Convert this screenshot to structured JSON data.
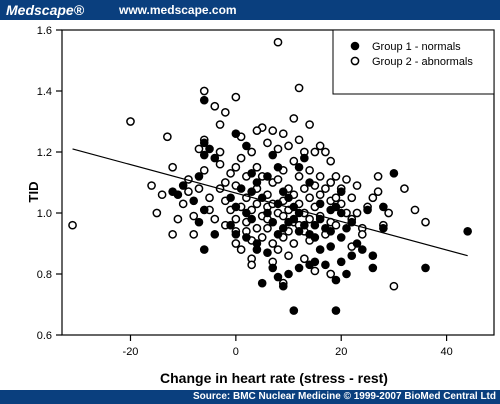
{
  "header": {
    "brand": "Medscape®",
    "site": "www.medscape.com"
  },
  "footer": {
    "source": "Source: BMC Nuclear Medicine © 1999-2007 BioMed Central Ltd"
  },
  "colors": {
    "bar": "#0a3f7e",
    "text": "#ffffff",
    "ink": "#000000"
  },
  "chart_data": {
    "type": "scatter",
    "xlabel": "Change in heart rate (stress - rest)",
    "ylabel": "TID",
    "xlim": [
      -33,
      49
    ],
    "ylim": [
      0.6,
      1.6
    ],
    "xticks": [
      -20,
      0,
      20,
      40
    ],
    "yticks": [
      0.6,
      0.8,
      1.0,
      1.2,
      1.4,
      1.6
    ],
    "grid": false,
    "legend_position": "top-right",
    "trendline": {
      "x": [
        -31,
        44
      ],
      "y": [
        1.21,
        0.86
      ]
    },
    "series": [
      {
        "name": "Group 1 - normals",
        "marker": "filled",
        "points": [
          [
            -6,
            1.37
          ],
          [
            -6,
            1.23
          ],
          [
            -5,
            1.21
          ],
          [
            -6,
            1.19
          ],
          [
            -4,
            1.18
          ],
          [
            -7,
            1.12
          ],
          [
            -11,
            1.06
          ],
          [
            -12,
            1.07
          ],
          [
            -10,
            1.09
          ],
          [
            -8,
            1.04
          ],
          [
            -6,
            1.01
          ],
          [
            -7,
            0.97
          ],
          [
            -4,
            0.93
          ],
          [
            -6,
            0.88
          ],
          [
            0,
            1.26
          ],
          [
            2,
            1.22
          ],
          [
            3,
            1.13
          ],
          [
            4,
            1.1
          ],
          [
            1,
            1.08
          ],
          [
            -1,
            1.05
          ],
          [
            0,
            1.02
          ],
          [
            2,
            1.0
          ],
          [
            3,
            0.98
          ],
          [
            -1,
            0.96
          ],
          [
            0,
            0.93
          ],
          [
            2,
            0.92
          ],
          [
            4,
            0.9
          ],
          [
            4,
            0.88
          ],
          [
            6,
            0.87
          ],
          [
            7,
            1.19
          ],
          [
            8,
            1.15
          ],
          [
            6,
            1.12
          ],
          [
            9,
            1.07
          ],
          [
            8,
            1.03
          ],
          [
            6,
            1.0
          ],
          [
            7,
            0.97
          ],
          [
            10,
            0.97
          ],
          [
            9,
            0.95
          ],
          [
            8,
            0.93
          ],
          [
            10,
            1.05
          ],
          [
            11,
            1.02
          ],
          [
            12,
            1.0
          ],
          [
            11,
            0.98
          ],
          [
            13,
            0.96
          ],
          [
            12,
            0.94
          ],
          [
            14,
            0.93
          ],
          [
            15,
            0.92
          ],
          [
            16,
            0.98
          ],
          [
            17,
            0.95
          ],
          [
            14,
            1.1
          ],
          [
            12,
            1.15
          ],
          [
            13,
            1.18
          ],
          [
            18,
            1.01
          ],
          [
            16,
            1.03
          ],
          [
            19,
            1.02
          ],
          [
            20,
            1.0
          ],
          [
            18,
            0.94
          ],
          [
            20,
            0.92
          ],
          [
            21,
            0.95
          ],
          [
            22,
            0.97
          ],
          [
            23,
            0.9
          ],
          [
            24,
            0.88
          ],
          [
            22,
            0.86
          ],
          [
            20,
            0.84
          ],
          [
            17,
            0.83
          ],
          [
            15,
            0.84
          ],
          [
            14,
            0.83
          ],
          [
            12,
            0.82
          ],
          [
            10,
            0.8
          ],
          [
            8,
            0.79
          ],
          [
            9,
            0.76
          ],
          [
            7,
            0.82
          ],
          [
            5,
            0.77
          ],
          [
            19,
            0.78
          ],
          [
            21,
            0.8
          ],
          [
            26,
            0.86
          ],
          [
            26,
            0.82
          ],
          [
            28,
            0.95
          ],
          [
            28,
            1.02
          ],
          [
            20,
            1.07
          ],
          [
            25,
            1.01
          ],
          [
            11,
            0.68
          ],
          [
            19,
            0.68
          ],
          [
            36,
            0.82
          ],
          [
            44,
            0.94
          ],
          [
            30,
            1.13
          ],
          [
            15,
            0.96
          ],
          [
            18,
            0.89
          ],
          [
            16,
            0.88
          ],
          [
            3,
            1.07
          ],
          [
            5,
            1.05
          ]
        ]
      },
      {
        "name": "Group 2 - abnormals",
        "marker": "open",
        "points": [
          [
            -31,
            0.96
          ],
          [
            -20,
            1.3
          ],
          [
            -16,
            1.09
          ],
          [
            -15,
            1.0
          ],
          [
            -13,
            1.25
          ],
          [
            -12,
            1.15
          ],
          [
            -11,
            0.98
          ],
          [
            -10,
            1.03
          ],
          [
            -9,
            1.07
          ],
          [
            -9,
            1.11
          ],
          [
            -8,
            0.99
          ],
          [
            -8,
            0.93
          ],
          [
            -7,
            1.21
          ],
          [
            -7,
            1.08
          ],
          [
            -6,
            1.4
          ],
          [
            -6,
            1.24
          ],
          [
            -6,
            1.14
          ],
          [
            -5,
            1.05
          ],
          [
            -5,
            1.01
          ],
          [
            -4,
            0.98
          ],
          [
            -3,
            1.08
          ],
          [
            -3,
            1.16
          ],
          [
            -3,
            1.2
          ],
          [
            -2,
            1.1
          ],
          [
            -2,
            1.04
          ],
          [
            -2,
            0.96
          ],
          [
            -1,
            1.13
          ],
          [
            -1,
            1.01
          ],
          [
            0,
            1.15
          ],
          [
            0,
            1.09
          ],
          [
            0,
            0.98
          ],
          [
            0,
            0.94
          ],
          [
            0,
            0.9
          ],
          [
            1,
            1.02
          ],
          [
            1,
            1.18
          ],
          [
            1,
            1.25
          ],
          [
            1,
            0.88
          ],
          [
            2,
            1.05
          ],
          [
            2,
            1.12
          ],
          [
            2,
            0.97
          ],
          [
            2,
            0.94
          ],
          [
            3,
            1.01
          ],
          [
            3,
            1.2
          ],
          [
            3,
            0.91
          ],
          [
            3,
            0.85
          ],
          [
            4,
            1.08
          ],
          [
            4,
            1.15
          ],
          [
            4,
            1.03
          ],
          [
            4,
            0.95
          ],
          [
            5,
            1.28
          ],
          [
            5,
            1.12
          ],
          [
            5,
            0.99
          ],
          [
            5,
            0.92
          ],
          [
            6,
            1.23
          ],
          [
            6,
            1.06
          ],
          [
            6,
            1.02
          ],
          [
            6,
            0.95
          ],
          [
            7,
            1.27
          ],
          [
            7,
            1.1
          ],
          [
            7,
            1.03
          ],
          [
            7,
            0.9
          ],
          [
            8,
            1.21
          ],
          [
            8,
            1.11
          ],
          [
            8,
            1.0
          ],
          [
            8,
            0.88
          ],
          [
            9,
            1.26
          ],
          [
            9,
            1.14
          ],
          [
            9,
            1.04
          ],
          [
            9,
            0.99
          ],
          [
            9,
            0.92
          ],
          [
            10,
            1.22
          ],
          [
            10,
            1.08
          ],
          [
            10,
            1.01
          ],
          [
            10,
            0.94
          ],
          [
            10,
            0.86
          ],
          [
            11,
            1.17
          ],
          [
            11,
            1.06
          ],
          [
            11,
            0.97
          ],
          [
            11,
            0.9
          ],
          [
            12,
            1.41
          ],
          [
            12,
            1.24
          ],
          [
            12,
            1.12
          ],
          [
            12,
            1.03
          ],
          [
            12,
            0.96
          ],
          [
            13,
            1.2
          ],
          [
            13,
            1.08
          ],
          [
            13,
            1.0
          ],
          [
            13,
            0.94
          ],
          [
            14,
            1.29
          ],
          [
            14,
            1.14
          ],
          [
            14,
            1.05
          ],
          [
            14,
            0.98
          ],
          [
            14,
            0.91
          ],
          [
            15,
            1.2
          ],
          [
            15,
            1.09
          ],
          [
            15,
            1.02
          ],
          [
            16,
            1.22
          ],
          [
            16,
            1.12
          ],
          [
            16,
            1.06
          ],
          [
            16,
            0.99
          ],
          [
            17,
            1.2
          ],
          [
            17,
            1.08
          ],
          [
            17,
            0.93
          ],
          [
            18,
            1.17
          ],
          [
            18,
            1.1
          ],
          [
            18,
            1.04
          ],
          [
            18,
            0.97
          ],
          [
            19,
            1.12
          ],
          [
            19,
            1.05
          ],
          [
            19,
            0.96
          ],
          [
            20,
            1.08
          ],
          [
            20,
            1.03
          ],
          [
            21,
            1.11
          ],
          [
            21,
            1.0
          ],
          [
            22,
            1.05
          ],
          [
            22,
            0.98
          ],
          [
            23,
            1.09
          ],
          [
            23,
            1.0
          ],
          [
            24,
            0.95
          ],
          [
            25,
            1.02
          ],
          [
            26,
            1.05
          ],
          [
            27,
            1.12
          ],
          [
            28,
            0.96
          ],
          [
            29,
            1.0
          ],
          [
            32,
            1.08
          ],
          [
            34,
            1.01
          ],
          [
            36,
            0.97
          ],
          [
            8,
            1.56
          ],
          [
            9,
            0.77
          ],
          [
            11,
            1.31
          ],
          [
            18,
            0.8
          ],
          [
            3,
            0.83
          ],
          [
            -4,
            1.35
          ],
          [
            -2,
            1.33
          ],
          [
            0,
            1.38
          ],
          [
            -3,
            1.29
          ],
          [
            -12,
            0.93
          ],
          [
            -14,
            1.06
          ],
          [
            6,
            0.98
          ],
          [
            4,
            1.27
          ],
          [
            22,
            0.89
          ],
          [
            30,
            0.76
          ],
          [
            27,
            1.07
          ],
          [
            24,
            0.93
          ],
          [
            13,
            0.85
          ],
          [
            15,
            0.81
          ],
          [
            7,
            0.84
          ]
        ]
      }
    ]
  }
}
